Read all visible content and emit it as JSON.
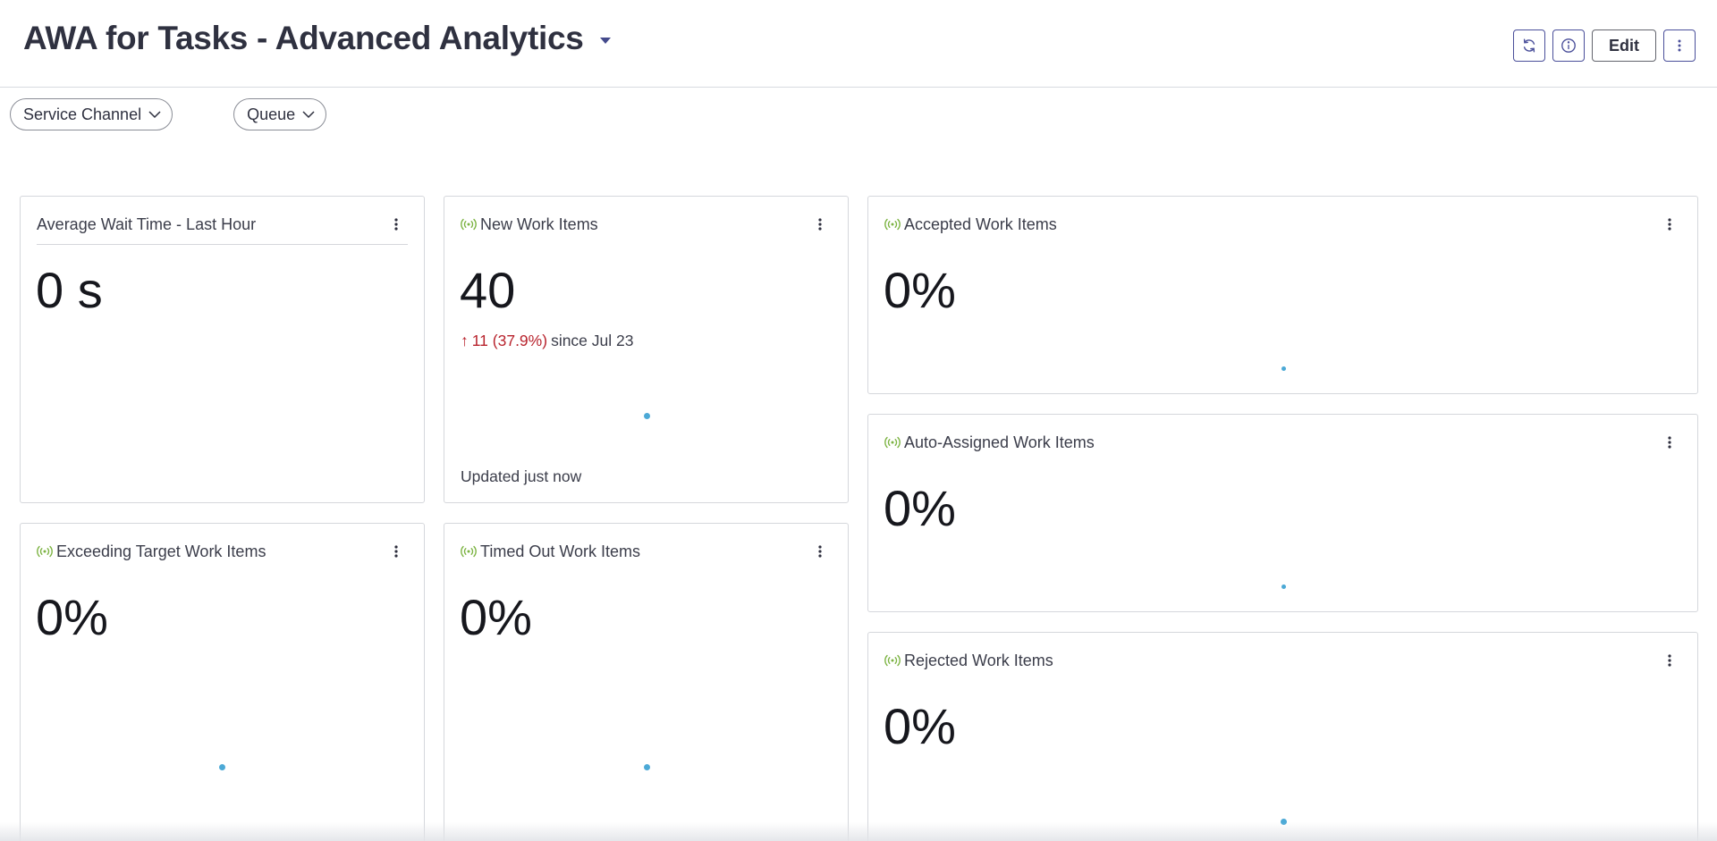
{
  "header": {
    "title": "AWA for Tasks - Advanced Analytics",
    "edit_label": "Edit"
  },
  "filters": [
    {
      "label": "Service Channel"
    },
    {
      "label": "Queue"
    }
  ],
  "colors": {
    "live_indicator": "#7cb342",
    "trend_up": "#b8232d",
    "chart_dot": "#4ca9d6",
    "toolbar_accent": "#4a4f9a"
  },
  "cards": {
    "avg_wait": {
      "title": "Average Wait Time - Last Hour",
      "value": "0 s"
    },
    "new_items": {
      "title": "New Work Items",
      "value": "40",
      "trend_arrow": "↑",
      "trend_change": "11 (37.9%)",
      "trend_since": "since Jul 23",
      "updated": "Updated just now"
    },
    "accepted": {
      "title": "Accepted Work Items",
      "value": "0%"
    },
    "auto_assigned": {
      "title": "Auto-Assigned Work Items",
      "value": "0%"
    },
    "exceeding": {
      "title": "Exceeding Target Work Items",
      "value": "0%"
    },
    "timed_out": {
      "title": "Timed Out Work Items",
      "value": "0%"
    },
    "rejected": {
      "title": "Rejected Work Items",
      "value": "0%"
    }
  },
  "icons": {
    "live": "broadcast-icon",
    "kebab": "more-vertical-icon",
    "refresh": "refresh-icon",
    "info": "info-icon",
    "caret": "caret-down-icon",
    "chevron": "chevron-down-icon"
  }
}
